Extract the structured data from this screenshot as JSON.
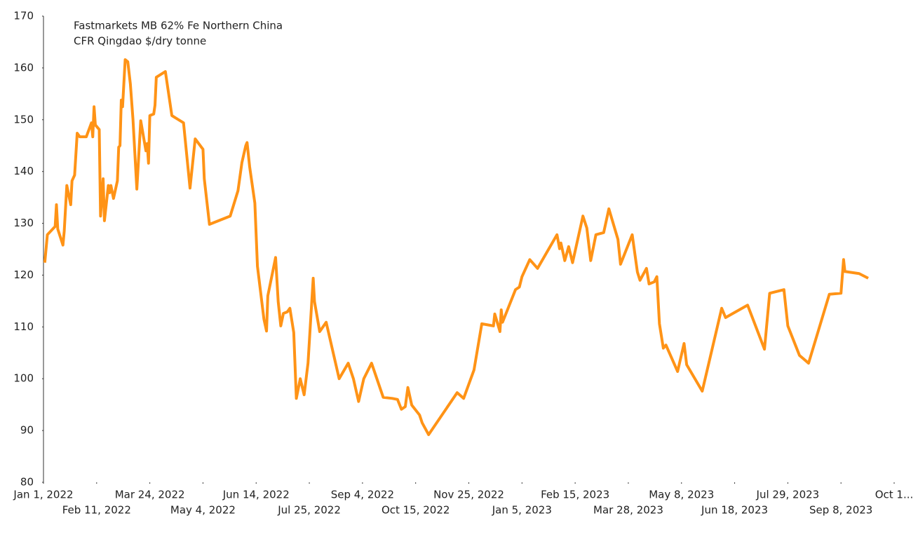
{
  "chart_data": {
    "type": "line",
    "annotation": [
      "Fastmarkets MB 62% Fe Northern China",
      "CFR Qingdao $/dry tonne"
    ],
    "x": [
      "2022-01-02",
      "2022-01-04",
      "2022-01-10",
      "2022-01-11",
      "2022-01-12",
      "2022-01-16",
      "2022-01-17",
      "2022-01-19",
      "2022-01-22",
      "2022-01-23",
      "2022-01-25",
      "2022-01-27",
      "2022-01-29",
      "2022-02-03",
      "2022-02-07",
      "2022-02-08",
      "2022-02-09",
      "2022-02-10",
      "2022-02-13",
      "2022-02-14",
      "2022-02-16",
      "2022-02-17",
      "2022-02-20",
      "2022-02-21",
      "2022-02-22",
      "2022-02-24",
      "2022-02-27",
      "2022-02-28",
      "2022-03-01",
      "2022-03-02",
      "2022-03-03",
      "2022-03-05",
      "2022-03-07",
      "2022-03-09",
      "2022-03-11",
      "2022-03-14",
      "2022-03-17",
      "2022-03-21",
      "2022-03-22",
      "2022-03-23",
      "2022-03-24",
      "2022-03-27",
      "2022-03-28",
      "2022-03-29",
      "2022-04-05",
      "2022-04-10",
      "2022-04-19",
      "2022-04-24",
      "2022-04-28",
      "2022-05-04",
      "2022-05-05",
      "2022-05-09",
      "2022-05-25",
      "2022-05-31",
      "2022-06-03",
      "2022-06-06",
      "2022-06-07",
      "2022-06-09",
      "2022-06-13",
      "2022-06-15",
      "2022-06-20",
      "2022-06-22",
      "2022-06-23",
      "2022-06-29",
      "2022-07-01",
      "2022-07-03",
      "2022-07-05",
      "2022-07-08",
      "2022-07-10",
      "2022-07-13",
      "2022-07-15",
      "2022-07-18",
      "2022-07-21",
      "2022-07-24",
      "2022-07-28",
      "2022-07-29",
      "2022-08-02",
      "2022-08-07",
      "2022-08-17",
      "2022-08-24",
      "2022-08-28",
      "2022-09-01",
      "2022-09-05",
      "2022-09-11",
      "2022-09-20",
      "2022-09-27",
      "2022-10-01",
      "2022-10-04",
      "2022-10-07",
      "2022-10-09",
      "2022-10-12",
      "2022-10-18",
      "2022-10-20",
      "2022-10-25",
      "2022-11-16",
      "2022-11-21",
      "2022-11-29",
      "2022-12-05",
      "2022-12-14",
      "2022-12-15",
      "2022-12-19",
      "2022-12-20",
      "2022-12-21",
      "2022-12-31",
      "2023-01-03",
      "2023-01-05",
      "2023-01-11",
      "2023-01-17",
      "2023-02-01",
      "2023-02-03",
      "2023-02-04",
      "2023-02-07",
      "2023-02-10",
      "2023-02-13",
      "2023-02-17",
      "2023-02-21",
      "2023-02-24",
      "2023-02-27",
      "2023-03-03",
      "2023-03-09",
      "2023-03-13",
      "2023-03-20",
      "2023-03-22",
      "2023-03-31",
      "2023-04-04",
      "2023-04-06",
      "2023-04-11",
      "2023-04-13",
      "2023-04-17",
      "2023-04-19",
      "2023-04-21",
      "2023-04-24",
      "2023-04-26",
      "2023-05-05",
      "2023-05-10",
      "2023-05-12",
      "2023-05-24",
      "2023-06-08",
      "2023-06-11",
      "2023-06-28",
      "2023-07-11",
      "2023-07-15",
      "2023-07-26",
      "2023-07-29",
      "2023-08-07",
      "2023-08-14",
      "2023-08-30",
      "2023-09-08",
      "2023-09-10",
      "2023-09-11",
      "2023-09-22",
      "2023-09-29"
    ],
    "series": [
      {
        "color": "#ff9316",
        "values": [
          122.4,
          127.8,
          129.4,
          133.6,
          128.9,
          125.8,
          128.5,
          137.3,
          133.6,
          138.2,
          139.3,
          147.4,
          146.7,
          146.7,
          149.4,
          146.7,
          152.5,
          149.0,
          148.1,
          131.4,
          138.6,
          130.5,
          137.3,
          135.9,
          137.3,
          134.8,
          138.2,
          144.7,
          145.0,
          153.8,
          152.5,
          161.6,
          161.2,
          156.9,
          150.1,
          136.6,
          149.8,
          144.0,
          145.4,
          141.6,
          150.8,
          151.1,
          152.8,
          158.2,
          159.3,
          150.8,
          149.4,
          136.8,
          146.3,
          144.3,
          138.6,
          129.8,
          131.4,
          136.3,
          141.7,
          145.0,
          145.6,
          140.9,
          133.9,
          121.7,
          111.5,
          109.2,
          116.0,
          123.4,
          114.9,
          110.2,
          112.6,
          112.9,
          113.6,
          108.9,
          96.2,
          100.0,
          96.9,
          103.0,
          119.4,
          114.9,
          109.1,
          110.9,
          100.0,
          103.0,
          100.0,
          95.6,
          100.0,
          103.0,
          96.4,
          96.2,
          96.0,
          94.1,
          94.6,
          98.3,
          94.9,
          93.0,
          91.5,
          89.2,
          97.3,
          96.2,
          101.7,
          110.6,
          110.2,
          112.5,
          109.1,
          113.3,
          110.9,
          117.2,
          117.7,
          119.7,
          123.0,
          121.3,
          127.8,
          125.1,
          126.2,
          122.8,
          125.5,
          122.4,
          126.9,
          131.4,
          129.1,
          122.8,
          127.8,
          128.2,
          132.8,
          126.9,
          122.1,
          127.8,
          120.6,
          119.0,
          121.3,
          118.3,
          118.7,
          119.7,
          110.6,
          105.9,
          106.5,
          101.4,
          106.8,
          102.7,
          97.6,
          113.6,
          111.8,
          114.2,
          105.7,
          116.5,
          117.2,
          110.2,
          104.5,
          103.0,
          116.3,
          116.5,
          123.0,
          120.7,
          120.3,
          119.4
        ]
      }
    ],
    "xlim": [
      "2022-01-01",
      "2023-10-19"
    ],
    "xticks": [
      {
        "value": "2022-01-01",
        "label": "Jan 1, 2022"
      },
      {
        "value": "2022-02-11",
        "label": "Feb 11, 2022"
      },
      {
        "value": "2022-03-24",
        "label": "Mar 24, 2022"
      },
      {
        "value": "2022-05-04",
        "label": "May 4, 2022"
      },
      {
        "value": "2022-06-14",
        "label": "Jun 14, 2022"
      },
      {
        "value": "2022-07-25",
        "label": "Jul 25, 2022"
      },
      {
        "value": "2022-09-04",
        "label": "Sep 4, 2022"
      },
      {
        "value": "2022-10-15",
        "label": "Oct 15, 2022"
      },
      {
        "value": "2022-11-25",
        "label": "Nov 25, 2022"
      },
      {
        "value": "2023-01-05",
        "label": "Jan 5, 2023"
      },
      {
        "value": "2023-02-15",
        "label": "Feb 15, 2023"
      },
      {
        "value": "2023-03-28",
        "label": "Mar 28, 2023"
      },
      {
        "value": "2023-05-08",
        "label": "May 8, 2023"
      },
      {
        "value": "2023-06-18",
        "label": "Jun 18, 2023"
      },
      {
        "value": "2023-07-29",
        "label": "Jul 29, 2023"
      },
      {
        "value": "2023-09-08",
        "label": "Sep 8, 2023"
      },
      {
        "value": "2023-10-19",
        "label": "Oct 1..."
      }
    ],
    "ylim": [
      80,
      170
    ],
    "yticks": [
      80,
      90,
      100,
      110,
      120,
      130,
      140,
      150,
      160,
      170
    ],
    "grid": false
  }
}
